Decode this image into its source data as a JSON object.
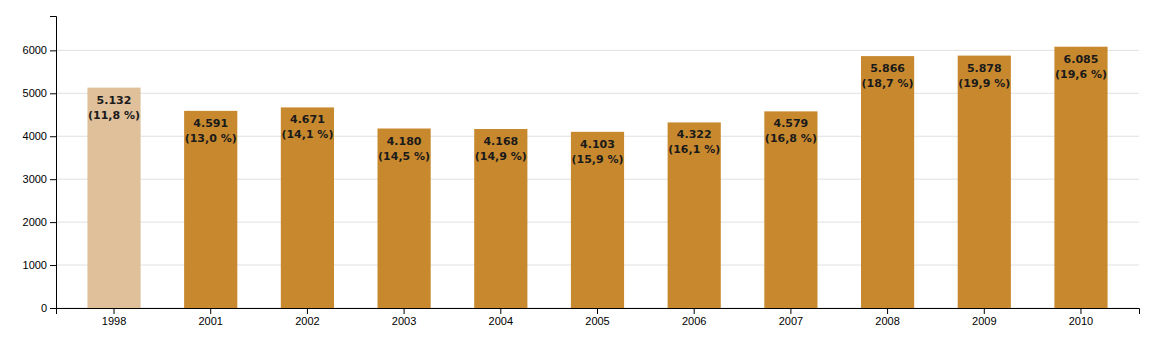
{
  "chart_data": {
    "type": "bar",
    "categories": [
      "1998",
      "2001",
      "2002",
      "2003",
      "2004",
      "2005",
      "2006",
      "2007",
      "2008",
      "2009",
      "2010"
    ],
    "values": [
      5132,
      4591,
      4671,
      4180,
      4168,
      4103,
      4322,
      4579,
      5866,
      5878,
      6085
    ],
    "data_labels": true,
    "value_labels": [
      "5.132",
      "4.591",
      "4.671",
      "4.180",
      "4.168",
      "4.103",
      "4.322",
      "4.579",
      "5.866",
      "5.878",
      "6.085"
    ],
    "share_labels": [
      "(11,8 %)",
      "(13,0 %)",
      "(14,1 %)",
      "(14,5 %)",
      "(14,9 %)",
      "(15,9 %)",
      "(16,1 %)",
      "(16,8 %)",
      "(18,7 %)",
      "(19,9 %)",
      "(19,6 %)"
    ],
    "colors": [
      "#dfc09a",
      "#c8892e",
      "#c8892e",
      "#c8892e",
      "#c8892e",
      "#c8892e",
      "#c8892e",
      "#c8892e",
      "#c8892e",
      "#c8892e",
      "#c8892e"
    ],
    "ylim": [
      0,
      6800
    ],
    "yticks": [
      0,
      1000,
      2000,
      3000,
      4000,
      5000,
      6000
    ],
    "grid": true
  }
}
